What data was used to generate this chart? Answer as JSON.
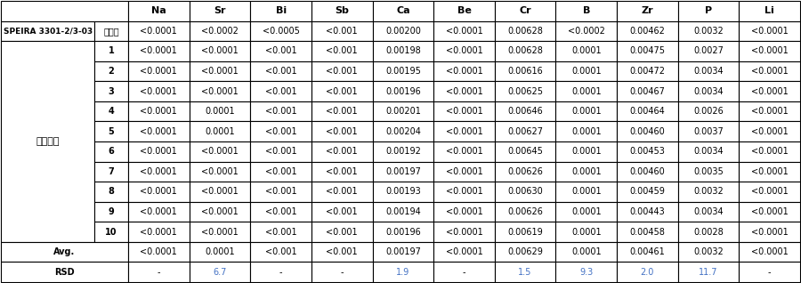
{
  "columns": [
    "Na",
    "Sr",
    "Bi",
    "Sb",
    "Ca",
    "Be",
    "Cr",
    "B",
    "Zr",
    "P",
    "Li"
  ],
  "cert_label": "認証値",
  "cert_row": [
    "<0.0001",
    "<0.0002",
    "<0.0005",
    "<0.001",
    "0.00200",
    "<0.0001",
    "0.00628",
    "<0.0002",
    "0.00462",
    "0.0032",
    "<0.0001"
  ],
  "sample_label": "SPEIRA 3301-2/3-03",
  "row_group_label": "測定箇所",
  "measurement_rows": [
    [
      "1",
      "<0.0001",
      "<0.0001",
      "<0.001",
      "<0.001",
      "0.00198",
      "<0.0001",
      "0.00628",
      "0.0001",
      "0.00475",
      "0.0027",
      "<0.0001"
    ],
    [
      "2",
      "<0.0001",
      "<0.0001",
      "<0.001",
      "<0.001",
      "0.00195",
      "<0.0001",
      "0.00616",
      "0.0001",
      "0.00472",
      "0.0034",
      "<0.0001"
    ],
    [
      "3",
      "<0.0001",
      "<0.0001",
      "<0.001",
      "<0.001",
      "0.00196",
      "<0.0001",
      "0.00625",
      "0.0001",
      "0.00467",
      "0.0034",
      "<0.0001"
    ],
    [
      "4",
      "<0.0001",
      "0.0001",
      "<0.001",
      "<0.001",
      "0.00201",
      "<0.0001",
      "0.00646",
      "0.0001",
      "0.00464",
      "0.0026",
      "<0.0001"
    ],
    [
      "5",
      "<0.0001",
      "0.0001",
      "<0.001",
      "<0.001",
      "0.00204",
      "<0.0001",
      "0.00627",
      "0.0001",
      "0.00460",
      "0.0037",
      "<0.0001"
    ],
    [
      "6",
      "<0.0001",
      "<0.0001",
      "<0.001",
      "<0.001",
      "0.00192",
      "<0.0001",
      "0.00645",
      "0.0001",
      "0.00453",
      "0.0034",
      "<0.0001"
    ],
    [
      "7",
      "<0.0001",
      "<0.0001",
      "<0.001",
      "<0.001",
      "0.00197",
      "<0.0001",
      "0.00626",
      "0.0001",
      "0.00460",
      "0.0035",
      "<0.0001"
    ],
    [
      "8",
      "<0.0001",
      "<0.0001",
      "<0.001",
      "<0.001",
      "0.00193",
      "<0.0001",
      "0.00630",
      "0.0001",
      "0.00459",
      "0.0032",
      "<0.0001"
    ],
    [
      "9",
      "<0.0001",
      "<0.0001",
      "<0.001",
      "<0.001",
      "0.00194",
      "<0.0001",
      "0.00626",
      "0.0001",
      "0.00443",
      "0.0034",
      "<0.0001"
    ],
    [
      "10",
      "<0.0001",
      "<0.0001",
      "<0.001",
      "<0.001",
      "0.00196",
      "<0.0001",
      "0.00619",
      "0.0001",
      "0.00458",
      "0.0028",
      "<0.0001"
    ]
  ],
  "avg_row": [
    "<0.0001",
    "0.0001",
    "<0.001",
    "<0.001",
    "0.00197",
    "<0.0001",
    "0.00629",
    "0.0001",
    "0.00461",
    "0.0032",
    "<0.0001"
  ],
  "rsd_row": [
    "-",
    "6.7",
    "-",
    "-",
    "1.9",
    "-",
    "1.5",
    "9.3",
    "2.0",
    "11.7",
    "-"
  ],
  "border_color": "#000000",
  "text_color": "#000000",
  "rsd_color": "#4472c4",
  "avg_label": "Avg.",
  "rsd_label": "RSD",
  "font_size": 7.0,
  "header_font_size": 8.0,
  "fig_width": 9.0,
  "fig_height": 3.18,
  "dpi": 100
}
